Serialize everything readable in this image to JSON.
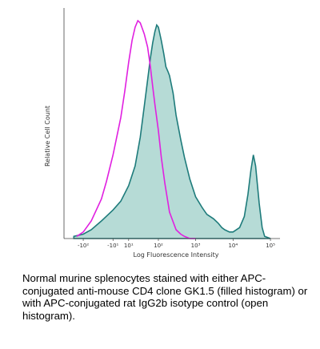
{
  "chart_data": {
    "type": "area",
    "xlabel": "Log Fluorescence Intensity",
    "ylabel": "Relative Cell Count",
    "x_tick_labels": [
      "-10²",
      "-10¹",
      "10¹",
      "10²",
      "10³",
      "10⁴",
      "10⁵"
    ],
    "x_ticks": [
      -100,
      -10,
      10,
      100,
      1000,
      10000,
      100000
    ],
    "x_scale": "biexponential",
    "series": [
      {
        "style": "filled",
        "color": "#1e7b7b",
        "fill": "#a9d5cf",
        "x": [
          -180,
          -100,
          -60,
          -30,
          -10,
          0,
          10,
          20,
          30,
          40,
          50,
          60,
          70,
          80,
          90,
          100,
          120,
          140,
          160,
          180,
          200,
          250,
          300,
          400,
          500,
          700,
          1000,
          1500,
          2000,
          3000,
          4000,
          5000,
          6000,
          8000,
          10000,
          15000,
          20000,
          25000,
          30000,
          35000,
          40000,
          50000,
          60000,
          70000,
          100000
        ],
        "y": [
          0.01,
          0.02,
          0.04,
          0.08,
          0.13,
          0.17,
          0.24,
          0.33,
          0.46,
          0.6,
          0.72,
          0.82,
          0.89,
          0.94,
          0.97,
          0.96,
          0.9,
          0.84,
          0.78,
          0.76,
          0.74,
          0.66,
          0.56,
          0.45,
          0.37,
          0.27,
          0.19,
          0.14,
          0.11,
          0.09,
          0.07,
          0.05,
          0.04,
          0.03,
          0.03,
          0.05,
          0.1,
          0.2,
          0.31,
          0.38,
          0.33,
          0.16,
          0.05,
          0.01,
          0
        ]
      },
      {
        "style": "open",
        "color": "#e020e0",
        "x": [
          -150,
          -100,
          -60,
          -30,
          -20,
          -10,
          0,
          5,
          10,
          15,
          20,
          25,
          30,
          40,
          50,
          60,
          70,
          80,
          100,
          120,
          150,
          200,
          300,
          400,
          500,
          700,
          1000
        ],
        "y": [
          0.01,
          0.03,
          0.08,
          0.18,
          0.26,
          0.38,
          0.55,
          0.67,
          0.8,
          0.9,
          0.96,
          0.99,
          0.98,
          0.93,
          0.87,
          0.78,
          0.69,
          0.61,
          0.49,
          0.37,
          0.25,
          0.12,
          0.04,
          0.02,
          0.01,
          0,
          0
        ]
      }
    ]
  },
  "caption": "Normal murine splenocytes stained with either APC-conjugated anti-mouse CD4 clone GK1.5 (filled histogram) or with APC-conjugated rat IgG2b isotype control (open histogram)."
}
